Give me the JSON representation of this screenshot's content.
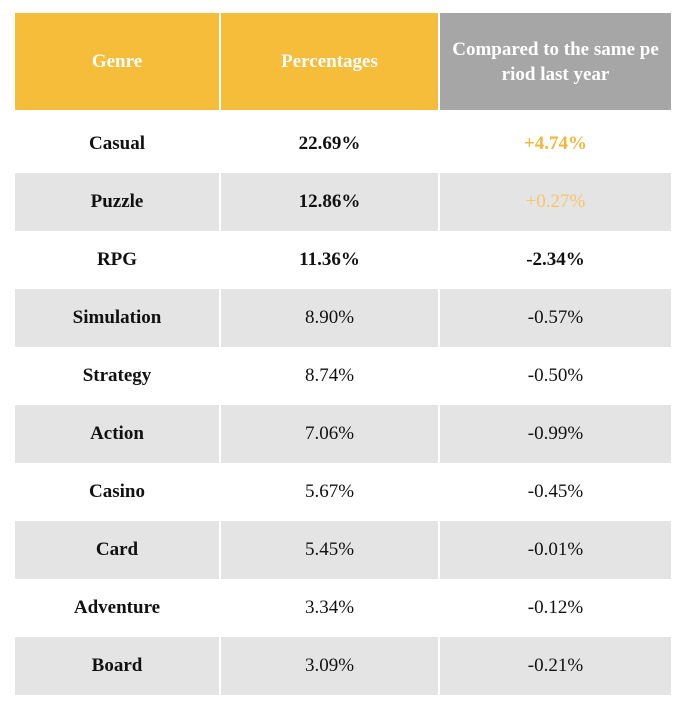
{
  "table": {
    "header": [
      "Genre",
      "Percentages",
      "Compared to the same period last year"
    ],
    "rows": [
      [
        "Casual",
        "22.69%",
        "+4.74%"
      ],
      [
        "Puzzle",
        "12.86%",
        "+0.27%"
      ],
      [
        "RPG",
        "11.36%",
        "-2.34%"
      ],
      [
        "Simulation",
        "8.90%",
        "-0.57%"
      ],
      [
        "Strategy",
        "8.74%",
        "-0.50%"
      ],
      [
        "Action",
        "7.06%",
        "-0.99%"
      ],
      [
        "Casino",
        "5.67%",
        "-0.45%"
      ],
      [
        "Card",
        "5.45%",
        "-0.01%"
      ],
      [
        "Adventure",
        "3.34%",
        "-0.12%"
      ],
      [
        "Board",
        "3.09%",
        "-0.21%"
      ]
    ]
  }
}
